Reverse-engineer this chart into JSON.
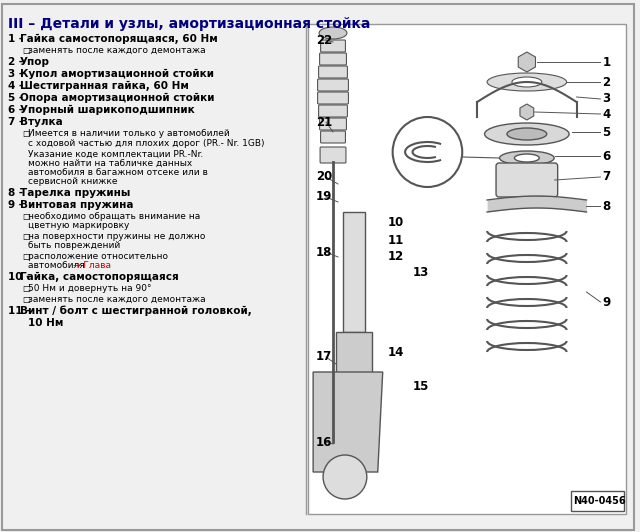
{
  "title": "III – Детали и узлы, амортизационная стойка",
  "bg_color": "#f0f0f0",
  "border_color": "#999999",
  "left_text_color": "#000000",
  "title_color": "#000080",
  "red_link_color": "#cc0000",
  "diagram_bg": "#ffffff",
  "left_items": [
    {
      "num": "1",
      "bold": "Гайка самостопорящаяся, 60 Нм",
      "subs": [
        "заменять после каждого демонтажа"
      ]
    },
    {
      "num": "2",
      "bold": "Упор",
      "subs": []
    },
    {
      "num": "3",
      "bold": "Купол амортизационной стойки",
      "subs": []
    },
    {
      "num": "4",
      "bold": "Шестигранная гайка, 60 Нм",
      "subs": []
    },
    {
      "num": "5",
      "bold": "Опора амортизационной стойки",
      "subs": []
    },
    {
      "num": "6",
      "bold": "Упорный шарикоподшипник",
      "subs": []
    },
    {
      "num": "7",
      "bold": "Втулка",
      "subs": [
        "Имеется в наличии только у автомобилей",
        "с ходовой частью для плохих дорог (PR.-",
        "Nr. 1GB)",
        "Указание коде комплектации PR.-Nr.",
        "можно найти на табличке данных",
        "автомобиля в багажном отсеке или в",
        "сервисной книжке"
      ]
    },
    {
      "num": "8",
      "bold": "Тарелка пружины",
      "subs": []
    },
    {
      "num": "9",
      "bold": "Винтовая пружина",
      "subs": [
        "необходимо обращать внимание на",
        "цветную маркировку",
        "на поверхности пружины не должно",
        "быть повреждений",
        "расположение относительно",
        "автомобиля → Глава"
      ]
    },
    {
      "num": "10",
      "bold": "Гайка, самостопорящаяся",
      "subs": [
        "50 Нм и довернуть на 90°",
        "заменять после каждого демонтажа"
      ]
    },
    {
      "num": "11",
      "bold": "Винт / болт с шестигранной головкой,",
      "subs": [
        "10 Нм"
      ]
    }
  ],
  "diagram_code": "N40-0456",
  "part_numbers_left": [
    "22",
    "21",
    "20",
    "19",
    "18",
    "17",
    "16"
  ],
  "part_numbers_right": [
    "1",
    "2",
    "3",
    "4",
    "5",
    "6",
    "7",
    "8",
    "9",
    "10",
    "11",
    "12",
    "13",
    "14",
    "15"
  ]
}
